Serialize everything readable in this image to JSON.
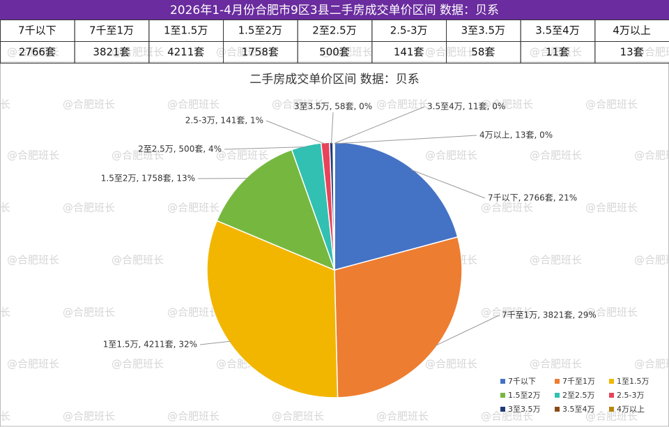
{
  "header": {
    "title": "2026年1-4月份合肥市9区3县二手房成交单价区间 数据：贝系"
  },
  "table": {
    "rows": [
      [
        "7千以下",
        "7千至1万",
        "1至1.5万",
        "1.5至2万",
        "2至2.5万",
        "2.5-3万",
        "3至3.5万",
        "3.5至4万",
        "4万以上"
      ],
      [
        "2766套",
        "3821套",
        "4211套",
        "1758套",
        "500套",
        "141套",
        "58套",
        "11套",
        "13套"
      ]
    ]
  },
  "watermark": "@合肥班长",
  "chart_data": {
    "type": "pie",
    "title": "二手房成交单价区间 数据：贝系",
    "categories": [
      "7千以下",
      "7千至1万",
      "1至1.5万",
      "1.5至2万",
      "2至2.5万",
      "2.5-3万",
      "3至3.5万",
      "3.5至4万",
      "4万以上"
    ],
    "values": [
      2766,
      3821,
      4211,
      1758,
      500,
      141,
      58,
      11,
      13
    ],
    "value_labels": [
      "7千以下, 2766套, 21%",
      "7千至1万, 3821套, 29%",
      "1至1.5万, 4211套, 32%",
      "1.5至2万, 1758套, 13%",
      "2至2.5万, 500套, 4%",
      "2.5-3万, 141套, 1%",
      "3至3.5万, 58套, 0%",
      "3.5至4万, 11套, 0%",
      "4万以上, 13套, 0%"
    ],
    "colors": [
      "#4472c4",
      "#ed7d31",
      "#f2b600",
      "#76b83f",
      "#31c0b2",
      "#e8435a",
      "#1f3a7a",
      "#8b4a13",
      "#b8860b"
    ],
    "legend": "bottom-right"
  }
}
